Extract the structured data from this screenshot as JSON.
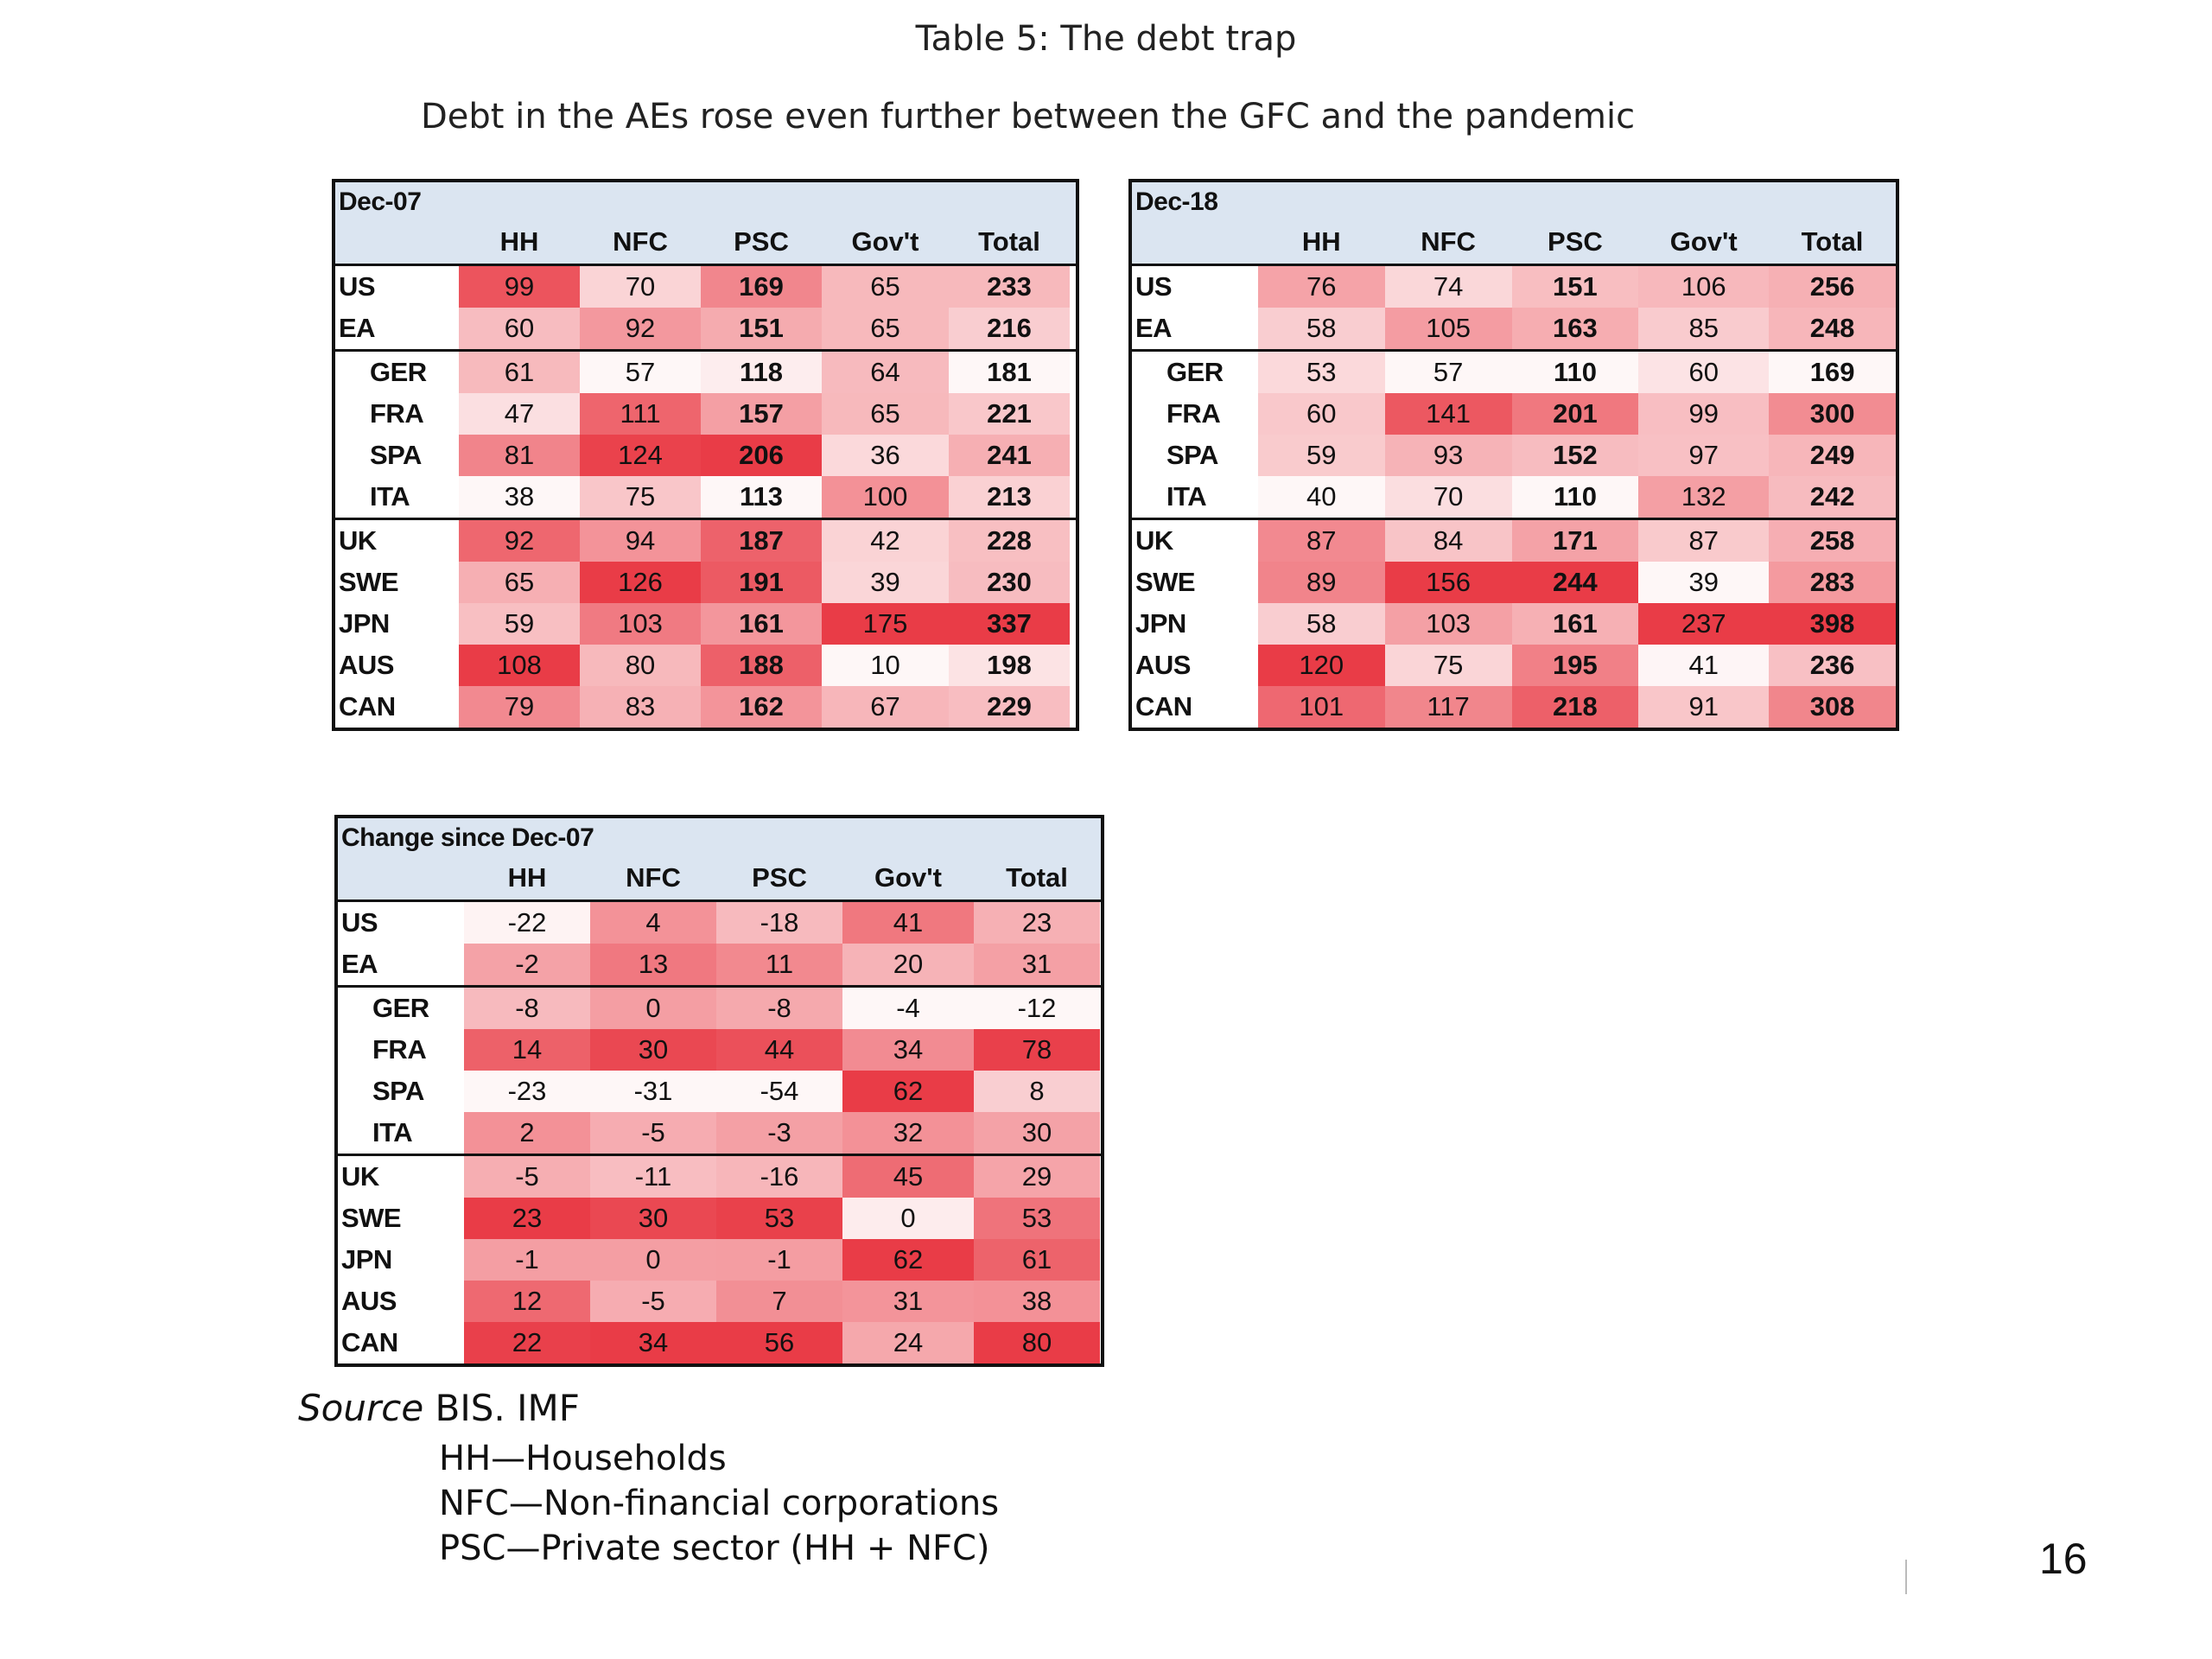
{
  "title": "Table 5:  The debt trap",
  "subtitle": "Debt in the AEs rose even further between the GFC and the pandemic",
  "columns": [
    "HH",
    "NFC",
    "PSC",
    "Gov't",
    "Total"
  ],
  "tables": [
    {
      "title": "Dec-07",
      "rows": [
        {
          "label": "US",
          "sub": false,
          "values": [
            99,
            70,
            169,
            65,
            233
          ]
        },
        {
          "label": "EA",
          "sub": false,
          "values": [
            60,
            92,
            151,
            65,
            216
          ]
        },
        {
          "label": "GER",
          "sub": true,
          "values": [
            61,
            57,
            118,
            64,
            181
          ]
        },
        {
          "label": "FRA",
          "sub": true,
          "values": [
            47,
            111,
            157,
            65,
            221
          ]
        },
        {
          "label": "SPA",
          "sub": true,
          "values": [
            81,
            124,
            206,
            36,
            241
          ]
        },
        {
          "label": "ITA",
          "sub": true,
          "values": [
            38,
            75,
            113,
            100,
            213
          ]
        },
        {
          "label": "UK",
          "sub": false,
          "values": [
            92,
            94,
            187,
            42,
            228
          ]
        },
        {
          "label": "SWE",
          "sub": false,
          "values": [
            65,
            126,
            191,
            39,
            230
          ]
        },
        {
          "label": "JPN",
          "sub": false,
          "values": [
            59,
            103,
            161,
            175,
            337
          ]
        },
        {
          "label": "AUS",
          "sub": false,
          "values": [
            108,
            80,
            188,
            10,
            198
          ]
        },
        {
          "label": "CAN",
          "sub": false,
          "values": [
            79,
            83,
            162,
            67,
            229
          ]
        }
      ]
    },
    {
      "title": "Dec-18",
      "rows": [
        {
          "label": "US",
          "sub": false,
          "values": [
            76,
            74,
            151,
            106,
            256
          ]
        },
        {
          "label": "EA",
          "sub": false,
          "values": [
            58,
            105,
            163,
            85,
            248
          ]
        },
        {
          "label": "GER",
          "sub": true,
          "values": [
            53,
            57,
            110,
            60,
            169
          ]
        },
        {
          "label": "FRA",
          "sub": true,
          "values": [
            60,
            141,
            201,
            99,
            300
          ]
        },
        {
          "label": "SPA",
          "sub": true,
          "values": [
            59,
            93,
            152,
            97,
            249
          ]
        },
        {
          "label": "ITA",
          "sub": true,
          "values": [
            40,
            70,
            110,
            132,
            242
          ]
        },
        {
          "label": "UK",
          "sub": false,
          "values": [
            87,
            84,
            171,
            87,
            258
          ]
        },
        {
          "label": "SWE",
          "sub": false,
          "values": [
            89,
            156,
            244,
            39,
            283
          ]
        },
        {
          "label": "JPN",
          "sub": false,
          "values": [
            58,
            103,
            161,
            237,
            398
          ]
        },
        {
          "label": "AUS",
          "sub": false,
          "values": [
            120,
            75,
            195,
            41,
            236
          ]
        },
        {
          "label": "CAN",
          "sub": false,
          "values": [
            101,
            117,
            218,
            91,
            308
          ]
        }
      ]
    },
    {
      "title": "Change since Dec-07",
      "rows": [
        {
          "label": "US",
          "sub": false,
          "values": [
            -22,
            4,
            -18,
            41,
            23
          ]
        },
        {
          "label": "EA",
          "sub": false,
          "values": [
            -2,
            13,
            11,
            20,
            31
          ]
        },
        {
          "label": "GER",
          "sub": true,
          "values": [
            -8,
            0,
            -8,
            -4,
            -12
          ]
        },
        {
          "label": "FRA",
          "sub": true,
          "values": [
            14,
            30,
            44,
            34,
            78
          ]
        },
        {
          "label": "SPA",
          "sub": true,
          "values": [
            -23,
            -31,
            -54,
            62,
            8
          ]
        },
        {
          "label": "ITA",
          "sub": true,
          "values": [
            2,
            -5,
            -3,
            32,
            30
          ]
        },
        {
          "label": "UK",
          "sub": false,
          "values": [
            -5,
            -11,
            -16,
            45,
            29
          ]
        },
        {
          "label": "SWE",
          "sub": false,
          "values": [
            23,
            30,
            53,
            0,
            53
          ]
        },
        {
          "label": "JPN",
          "sub": false,
          "values": [
            -1,
            0,
            -1,
            62,
            61
          ]
        },
        {
          "label": "AUS",
          "sub": false,
          "values": [
            12,
            -5,
            7,
            31,
            38
          ]
        },
        {
          "label": "CAN",
          "sub": false,
          "values": [
            22,
            34,
            56,
            24,
            80
          ]
        }
      ]
    }
  ],
  "source": {
    "label": "Source",
    "text": " BIS. IMF"
  },
  "legend": [
    "HH—Households",
    "NFC—Non-financial corporations",
    "PSC—Private sector (HH + NFC)"
  ],
  "page_number": "16",
  "heat_color": "#e8343f"
}
